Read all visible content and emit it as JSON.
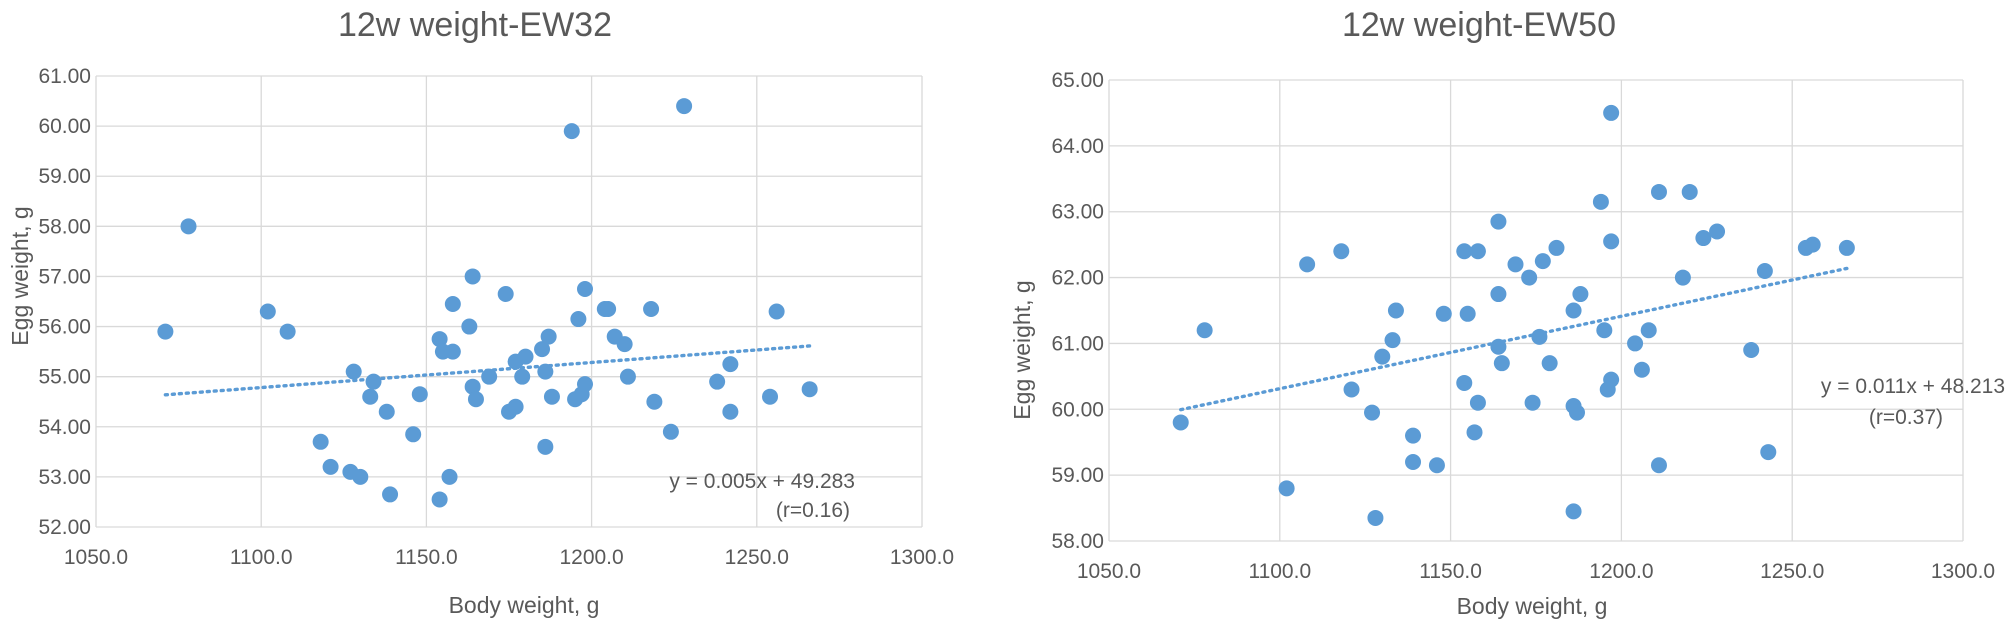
{
  "chart_data": [
    {
      "type": "scatter",
      "title": "12w weight-EW32",
      "xlabel": "Body weight, g",
      "ylabel": "Egg weight, g",
      "xlim": [
        1050,
        1300
      ],
      "ylim": [
        52,
        61
      ],
      "x_ticks": [
        "1050.0",
        "1100.0",
        "1150.0",
        "1200.0",
        "1250.0",
        "1300.0"
      ],
      "y_ticks": [
        "52.00",
        "53.00",
        "54.00",
        "55.00",
        "56.00",
        "57.00",
        "58.00",
        "59.00",
        "60.00",
        "61.00"
      ],
      "grid": true,
      "trendline": {
        "slope": 0.005,
        "intercept": 49.283,
        "x_range": [
          1071,
          1266
        ]
      },
      "equation": "y = 0.005x + 49.283",
      "r_label": "(r=0.16)",
      "points": [
        [
          1071,
          55.9
        ],
        [
          1078,
          58.0
        ],
        [
          1102,
          56.3
        ],
        [
          1108,
          55.9
        ],
        [
          1118,
          53.7
        ],
        [
          1121,
          53.2
        ],
        [
          1127,
          53.1
        ],
        [
          1128,
          55.1
        ],
        [
          1130,
          53.0
        ],
        [
          1133,
          54.6
        ],
        [
          1134,
          54.9
        ],
        [
          1138,
          54.3
        ],
        [
          1139,
          52.65
        ],
        [
          1146,
          53.85
        ],
        [
          1148,
          54.65
        ],
        [
          1154,
          52.55
        ],
        [
          1154,
          55.75
        ],
        [
          1155,
          55.5
        ],
        [
          1157,
          53.0
        ],
        [
          1158,
          56.45
        ],
        [
          1158,
          55.5
        ],
        [
          1163,
          56.0
        ],
        [
          1164,
          54.8
        ],
        [
          1164,
          57.0
        ],
        [
          1165,
          54.55
        ],
        [
          1169,
          55.0
        ],
        [
          1174,
          56.65
        ],
        [
          1175,
          54.3
        ],
        [
          1177,
          54.4
        ],
        [
          1177,
          55.3
        ],
        [
          1179,
          55.0
        ],
        [
          1180,
          55.4
        ],
        [
          1185,
          55.55
        ],
        [
          1186,
          55.1
        ],
        [
          1186,
          53.6
        ],
        [
          1187,
          55.8
        ],
        [
          1188,
          54.6
        ],
        [
          1194,
          59.9
        ],
        [
          1195,
          54.55
        ],
        [
          1196,
          56.15
        ],
        [
          1197,
          54.65
        ],
        [
          1198,
          54.85
        ],
        [
          1198,
          56.75
        ],
        [
          1204,
          56.35
        ],
        [
          1205,
          56.35
        ],
        [
          1207,
          55.8
        ],
        [
          1210,
          55.65
        ],
        [
          1211,
          55.0
        ],
        [
          1218,
          56.35
        ],
        [
          1219,
          54.5
        ],
        [
          1224,
          53.9
        ],
        [
          1228,
          60.4
        ],
        [
          1238,
          54.9
        ],
        [
          1242,
          55.25
        ],
        [
          1242,
          54.3
        ],
        [
          1254,
          54.6
        ],
        [
          1256,
          56.3
        ],
        [
          1266,
          54.75
        ]
      ]
    },
    {
      "type": "scatter",
      "title": "12w weight-EW50",
      "xlabel": "Body weight, g",
      "ylabel": "Egg weight, g",
      "xlim": [
        1050,
        1300
      ],
      "ylim": [
        58,
        65
      ],
      "x_ticks": [
        "1050.0",
        "1100.0",
        "1150.0",
        "1200.0",
        "1250.0",
        "1300.0"
      ],
      "y_ticks": [
        "58.00",
        "59.00",
        "60.00",
        "61.00",
        "62.00",
        "63.00",
        "64.00",
        "65.00"
      ],
      "grid": true,
      "trendline": {
        "slope": 0.011,
        "intercept": 48.213,
        "x_range": [
          1071,
          1266
        ]
      },
      "equation": "y = 0.011x + 48.213",
      "r_label": "(r=0.37)",
      "points": [
        [
          1071,
          59.8
        ],
        [
          1078,
          61.2
        ],
        [
          1102,
          58.8
        ],
        [
          1108,
          62.2
        ],
        [
          1118,
          62.4
        ],
        [
          1121,
          60.3
        ],
        [
          1127,
          59.95
        ],
        [
          1128,
          58.35
        ],
        [
          1130,
          60.8
        ],
        [
          1133,
          61.05
        ],
        [
          1134,
          61.5
        ],
        [
          1139,
          59.2
        ],
        [
          1139,
          59.6
        ],
        [
          1146,
          59.15
        ],
        [
          1148,
          61.45
        ],
        [
          1154,
          62.4
        ],
        [
          1154,
          60.4
        ],
        [
          1155,
          61.45
        ],
        [
          1157,
          59.65
        ],
        [
          1158,
          62.4
        ],
        [
          1158,
          60.1
        ],
        [
          1164,
          60.95
        ],
        [
          1164,
          61.75
        ],
        [
          1164,
          62.85
        ],
        [
          1165,
          60.7
        ],
        [
          1169,
          62.2
        ],
        [
          1173,
          62.0
        ],
        [
          1174,
          60.1
        ],
        [
          1176,
          61.1
        ],
        [
          1177,
          62.25
        ],
        [
          1179,
          60.7
        ],
        [
          1181,
          62.45
        ],
        [
          1186,
          61.5
        ],
        [
          1186,
          60.05
        ],
        [
          1186,
          58.45
        ],
        [
          1187,
          59.95
        ],
        [
          1188,
          61.75
        ],
        [
          1194,
          63.15
        ],
        [
          1195,
          61.2
        ],
        [
          1196,
          60.3
        ],
        [
          1197,
          60.45
        ],
        [
          1197,
          62.55
        ],
        [
          1197,
          64.5
        ],
        [
          1204,
          61.0
        ],
        [
          1206,
          60.6
        ],
        [
          1208,
          61.2
        ],
        [
          1211,
          63.3
        ],
        [
          1211,
          59.15
        ],
        [
          1218,
          62.0
        ],
        [
          1220,
          63.3
        ],
        [
          1224,
          62.6
        ],
        [
          1228,
          62.7
        ],
        [
          1238,
          60.9
        ],
        [
          1242,
          62.1
        ],
        [
          1243,
          59.35
        ],
        [
          1254,
          62.45
        ],
        [
          1256,
          62.5
        ],
        [
          1266,
          62.45
        ]
      ]
    }
  ]
}
